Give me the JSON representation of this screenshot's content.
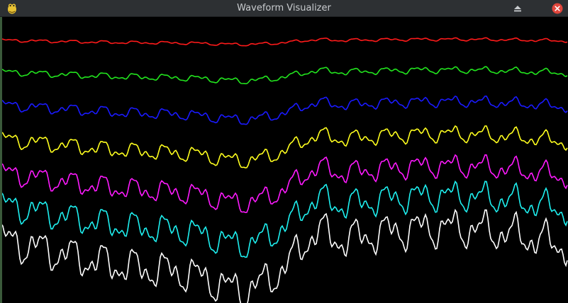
{
  "window": {
    "title": "Waveform Visualizer",
    "app_icon": "python-snake-icon",
    "controls": [
      "eject-icon",
      "close-icon"
    ],
    "close_color": "#e0463c"
  },
  "visualizer": {
    "background": "#000000",
    "waveforms": [
      {
        "color": "#ff1a1a",
        "amplitude": 0.25
      },
      {
        "color": "#22e51e",
        "amplitude": 0.45
      },
      {
        "color": "#1a1aff",
        "amplitude": 0.65
      },
      {
        "color": "#ffff1e",
        "amplitude": 0.85
      },
      {
        "color": "#ff1aff",
        "amplitude": 1.05
      },
      {
        "color": "#1ef0f0",
        "amplitude": 1.25
      },
      {
        "color": "#ffffff",
        "amplitude": 1.45
      }
    ]
  }
}
